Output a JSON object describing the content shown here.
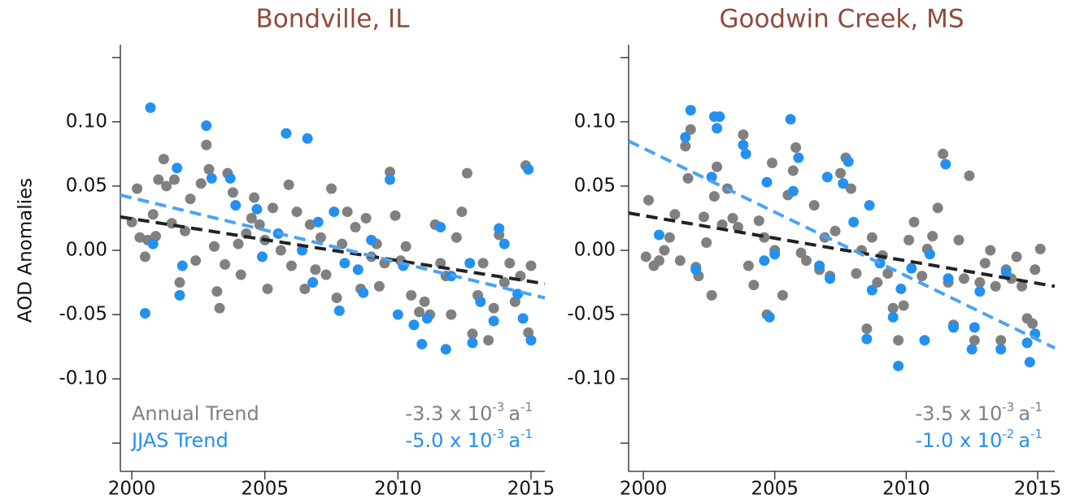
{
  "chart_data": [
    {
      "type": "scatter",
      "title": "Bondville, IL",
      "y_label": "AOD Anomalies",
      "xlim": [
        1999.57,
        2015.52
      ],
      "xticks": [
        2000,
        2005,
        2010,
        2015
      ],
      "ylim": [
        -0.172,
        0.16
      ],
      "yticks": [
        {
          "value": -0.15,
          "label": null
        },
        {
          "value": -0.1,
          "label": "-0.10"
        },
        {
          "value": -0.05,
          "label": "-0.05"
        },
        {
          "value": 0,
          "label": "0.00"
        },
        {
          "value": 0.05,
          "label": "0.05"
        },
        {
          "value": 0.1,
          "label": "0.10"
        },
        {
          "value": 0.15,
          "label": null
        }
      ],
      "series": [
        {
          "name": "Annual Trend",
          "color": "#808080",
          "x": [
            2000.0,
            2000.2,
            2000.3,
            2000.5,
            2000.6,
            2000.8,
            2000.9,
            2001.0,
            2001.2,
            2001.3,
            2001.5,
            2001.6,
            2001.8,
            2002.0,
            2002.2,
            2002.4,
            2002.6,
            2002.8,
            2002.9,
            2003.1,
            2003.2,
            2003.3,
            2003.5,
            2003.6,
            2003.8,
            2004.0,
            2004.1,
            2004.3,
            2004.5,
            2004.6,
            2004.8,
            2005.0,
            2005.1,
            2005.3,
            2005.6,
            2005.9,
            2006.0,
            2006.2,
            2006.5,
            2006.7,
            2006.9,
            2007.1,
            2007.3,
            2007.5,
            2007.7,
            2007.9,
            2008.1,
            2008.4,
            2008.6,
            2008.8,
            2009.0,
            2009.2,
            2009.3,
            2009.5,
            2009.7,
            2009.9,
            2010.1,
            2010.3,
            2010.5,
            2010.8,
            2011.0,
            2011.2,
            2011.4,
            2011.6,
            2011.8,
            2012.0,
            2012.2,
            2012.4,
            2012.6,
            2012.8,
            2013.0,
            2013.2,
            2013.4,
            2013.6,
            2013.8,
            2014.0,
            2014.2,
            2014.4,
            2014.6,
            2014.8,
            2014.9,
            2015.0
          ],
          "values": [
            0.022,
            0.048,
            0.01,
            -0.005,
            0.008,
            0.028,
            0.011,
            0.055,
            0.071,
            0.05,
            0.021,
            0.055,
            -0.025,
            0.015,
            0.04,
            -0.008,
            0.052,
            0.082,
            0.063,
            0.003,
            -0.032,
            -0.045,
            -0.011,
            0.06,
            0.045,
            0.005,
            -0.019,
            0.013,
            0.025,
            0.041,
            0.02,
            0.008,
            -0.03,
            0.033,
            0.0,
            0.051,
            -0.012,
            0.03,
            -0.03,
            0.02,
            -0.015,
            0.01,
            -0.019,
            0.048,
            -0.037,
            0.005,
            0.03,
            0.018,
            -0.03,
            0.025,
            -0.005,
            0.005,
            -0.028,
            -0.01,
            0.061,
            0.027,
            -0.008,
            0.003,
            -0.035,
            -0.048,
            -0.04,
            -0.05,
            0.02,
            -0.01,
            -0.02,
            -0.05,
            0.01,
            0.03,
            0.06,
            -0.065,
            -0.035,
            -0.01,
            -0.07,
            -0.045,
            0.012,
            -0.025,
            -0.01,
            -0.04,
            -0.02,
            0.066,
            -0.064,
            -0.012
          ],
          "trend": {
            "color": "#222222",
            "x": [
              1999.57,
              2015.52
            ],
            "values": [
              0.026,
              -0.026
            ]
          },
          "slope_label": {
            "text": "-3.3 x 10",
            "exp": "-3",
            "unit": "a",
            "unit_exp": "-1"
          }
        },
        {
          "name": "JJAS Trend",
          "color": "#2490f0",
          "x": [
            2000.5,
            2000.7,
            2000.8,
            2001.7,
            2001.8,
            2001.9,
            2002.8,
            2003.0,
            2003.7,
            2003.9,
            2004.7,
            2004.9,
            2005.5,
            2005.8,
            2006.4,
            2006.6,
            2006.8,
            2007.0,
            2007.6,
            2007.8,
            2008.0,
            2008.5,
            2008.7,
            2009.0,
            2009.7,
            2010.0,
            2010.2,
            2010.6,
            2010.9,
            2011.1,
            2011.6,
            2011.8,
            2012.0,
            2012.7,
            2012.8,
            2013.1,
            2013.6,
            2013.8,
            2014.0,
            2014.5,
            2014.7,
            2014.9,
            2015.0
          ],
          "values": [
            -0.049,
            0.111,
            0.005,
            0.064,
            -0.035,
            -0.012,
            0.097,
            0.056,
            0.056,
            0.035,
            0.032,
            -0.005,
            0.013,
            0.091,
            0.0,
            0.087,
            -0.025,
            0.022,
            0.03,
            -0.047,
            -0.01,
            -0.015,
            -0.033,
            0.008,
            0.055,
            -0.05,
            -0.012,
            -0.058,
            -0.073,
            -0.053,
            0.018,
            -0.077,
            -0.02,
            -0.01,
            -0.072,
            -0.04,
            -0.055,
            0.017,
            0.005,
            -0.034,
            -0.053,
            0.063,
            -0.07
          ],
          "trend": {
            "color": "#4aa3f5",
            "x": [
              1999.57,
              2015.52
            ],
            "values": [
              0.043,
              -0.037
            ]
          },
          "slope_label": {
            "text": "-5.0 x 10",
            "exp": "-3",
            "unit": "a",
            "unit_exp": "-1"
          }
        }
      ]
    },
    {
      "type": "scatter",
      "title": "Goodwin Creek, MS",
      "xlim": [
        1999.44,
        2015.65
      ],
      "xticks": [
        2000,
        2005,
        2010,
        2015
      ],
      "ylim": [
        -0.172,
        0.16
      ],
      "yticks": [
        {
          "value": -0.15,
          "label": null
        },
        {
          "value": -0.1,
          "label": "-0.10"
        },
        {
          "value": -0.05,
          "label": "-0.05"
        },
        {
          "value": 0,
          "label": "0.00"
        },
        {
          "value": 0.05,
          "label": "0.05"
        },
        {
          "value": 0.1,
          "label": "0.10"
        },
        {
          "value": 0.15,
          "label": null
        }
      ],
      "series": [
        {
          "color": "#808080",
          "x": [
            2000.1,
            2000.2,
            2000.4,
            2000.6,
            2000.8,
            2001.0,
            2001.2,
            2001.4,
            2001.6,
            2001.7,
            2001.8,
            2002.0,
            2002.1,
            2002.3,
            2002.4,
            2002.6,
            2002.7,
            2002.8,
            2003.0,
            2003.2,
            2003.4,
            2003.6,
            2003.8,
            2004.0,
            2004.2,
            2004.4,
            2004.6,
            2004.7,
            2004.9,
            2005.0,
            2005.3,
            2005.5,
            2005.7,
            2005.8,
            2006.0,
            2006.2,
            2006.5,
            2006.7,
            2006.9,
            2007.1,
            2007.3,
            2007.5,
            2007.7,
            2007.9,
            2008.1,
            2008.3,
            2008.5,
            2008.7,
            2008.9,
            2009.1,
            2009.3,
            2009.5,
            2009.7,
            2009.9,
            2010.1,
            2010.3,
            2010.6,
            2010.8,
            2011.0,
            2011.2,
            2011.4,
            2011.6,
            2011.8,
            2012.0,
            2012.2,
            2012.4,
            2012.6,
            2012.8,
            2013.0,
            2013.2,
            2013.4,
            2013.6,
            2013.8,
            2014.0,
            2014.2,
            2014.4,
            2014.6,
            2014.8,
            2014.9,
            2015.1
          ],
          "values": [
            -0.005,
            0.039,
            -0.012,
            -0.008,
            0.0,
            0.01,
            0.028,
            -0.008,
            0.081,
            0.056,
            0.094,
            -0.013,
            -0.02,
            0.026,
            0.006,
            -0.035,
            0.042,
            0.065,
            0.02,
            0.048,
            0.025,
            0.018,
            0.09,
            -0.012,
            -0.027,
            0.023,
            0.01,
            -0.05,
            0.068,
            0.0,
            -0.035,
            0.043,
            0.062,
            0.08,
            -0.002,
            -0.008,
            0.035,
            -0.015,
            0.01,
            -0.02,
            0.015,
            0.06,
            0.072,
            0.048,
            -0.018,
            0.0,
            -0.061,
            0.01,
            -0.025,
            -0.004,
            -0.018,
            -0.045,
            -0.07,
            -0.043,
            0.008,
            0.022,
            -0.02,
            0.001,
            0.011,
            0.033,
            0.075,
            -0.025,
            -0.058,
            0.008,
            -0.022,
            0.058,
            -0.07,
            -0.025,
            -0.01,
            0.0,
            -0.028,
            -0.07,
            -0.015,
            -0.022,
            -0.005,
            -0.028,
            -0.053,
            -0.057,
            -0.015,
            0.001
          ],
          "trend": {
            "color": "#222222",
            "x": [
              1999.44,
              2015.65
            ],
            "values": [
              0.029,
              -0.028
            ]
          },
          "slope_label": {
            "text": "-3.5 x 10",
            "exp": "-3",
            "unit": "a",
            "unit_exp": "-1"
          }
        },
        {
          "color": "#2490f0",
          "x": [
            2000.6,
            2001.6,
            2001.8,
            2002.0,
            2002.6,
            2002.7,
            2002.8,
            2002.9,
            2003.8,
            2003.9,
            2004.6,
            2004.7,
            2004.8,
            2005.0,
            2005.6,
            2005.7,
            2005.9,
            2006.7,
            2007.0,
            2007.1,
            2007.6,
            2007.8,
            2008.0,
            2008.5,
            2008.6,
            2008.7,
            2009.0,
            2009.5,
            2009.7,
            2009.8,
            2010.2,
            2010.7,
            2010.9,
            2011.5,
            2011.6,
            2011.8,
            2012.5,
            2012.6,
            2012.8,
            2013.6,
            2013.8,
            2014.6,
            2014.7,
            2014.9
          ],
          "values": [
            0.012,
            0.088,
            0.109,
            -0.015,
            0.057,
            0.104,
            0.095,
            0.104,
            0.082,
            0.075,
            -0.008,
            0.053,
            -0.052,
            -0.003,
            0.102,
            0.046,
            0.072,
            -0.012,
            0.057,
            -0.022,
            0.052,
            0.069,
            0.022,
            -0.069,
            0.035,
            -0.031,
            -0.01,
            -0.052,
            -0.09,
            -0.03,
            -0.014,
            -0.07,
            -0.003,
            0.067,
            -0.022,
            -0.06,
            -0.077,
            -0.06,
            -0.032,
            -0.077,
            -0.017,
            -0.072,
            -0.087,
            -0.065
          ],
          "trend": {
            "color": "#4aa3f5",
            "x": [
              1999.44,
              2015.65
            ],
            "values": [
              0.085,
              -0.076
            ]
          },
          "slope_label": {
            "text": "-1.0 x 10",
            "exp": "-2",
            "unit": "a",
            "unit_exp": "-1"
          }
        }
      ]
    }
  ]
}
